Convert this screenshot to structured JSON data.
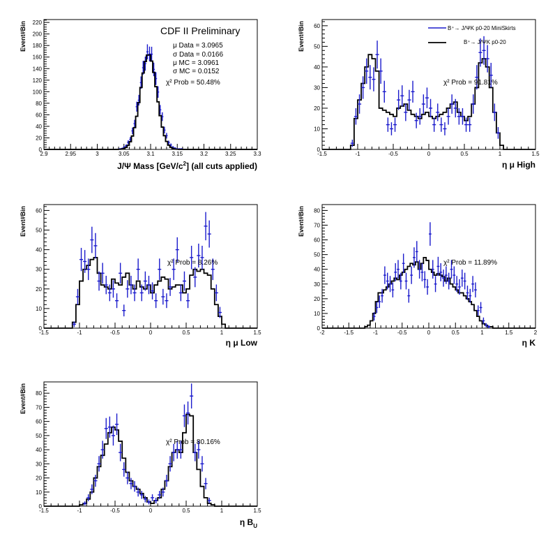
{
  "colors": {
    "data": "#1a1acc",
    "mc": "#000000"
  },
  "chart_data": [
    {
      "type": "histogram",
      "panel": "jpsi-mass",
      "title": "CDF II Preliminary",
      "xlabel_main": "J/Ψ Mass [GeV/c",
      "xlabel_sup": "2",
      "xlabel_tail": "] (all cuts applied)",
      "ylabel": "Event#Bin",
      "xlim": [
        2.9,
        3.3
      ],
      "ylim": [
        0,
        225
      ],
      "xticks": [
        2.9,
        2.95,
        3.0,
        3.05,
        3.1,
        3.15,
        3.2,
        3.25,
        3.3
      ],
      "xtick_labels": [
        "2.9",
        "2.95",
        "3",
        "3.05",
        "3.1",
        "3.15",
        "3.2",
        "3.25",
        "3.3"
      ],
      "yticks": [
        0,
        20,
        40,
        60,
        80,
        100,
        120,
        140,
        160,
        180,
        200,
        220
      ],
      "bin_width": 0.004,
      "annotations": [
        "μ Data = 3.0965",
        "σ Data =  0.0166",
        "μ MC = 3.0961",
        "σ MC =  0.0152",
        "χ² Prob = 50.48%"
      ],
      "gaussian_data": {
        "mu": 3.0965,
        "sigma": 0.0166,
        "amp": 168
      },
      "gaussian_mc": {
        "mu": 3.0961,
        "sigma": 0.0152,
        "amp": 165
      }
    },
    {
      "type": "histogram",
      "panel": "eta-mu-high",
      "xlabel_main": "η μ High",
      "ylabel": "Event#Bin",
      "xlim": [
        -1.5,
        1.5
      ],
      "ylim": [
        0,
        63
      ],
      "xticks": [
        -1.5,
        -1,
        -0.5,
        0,
        0.5,
        1,
        1.5
      ],
      "xtick_labels": [
        "-1.5",
        "-1",
        "-0.5",
        "0",
        "0.5",
        "1",
        "1.5"
      ],
      "yticks": [
        0,
        10,
        20,
        30,
        40,
        50,
        60
      ],
      "bin_width": 0.05,
      "annotation": "χ² Prob = 91.81%",
      "legend": [
        {
          "label": "B⁺→ J/ΨK p0-20 MiniSkirts",
          "style": "data"
        },
        {
          "label": "B⁺→ J/ΨK p0-20",
          "style": "mc"
        }
      ],
      "mc_centers": [
        -1.075,
        -1.025,
        -0.975,
        -0.925,
        -0.875,
        -0.825,
        -0.775,
        -0.725,
        -0.675,
        -0.625,
        -0.575,
        -0.525,
        -0.475,
        -0.425,
        -0.375,
        -0.325,
        -0.275,
        -0.225,
        -0.175,
        -0.125,
        -0.075,
        -0.025,
        0.025,
        0.075,
        0.125,
        0.175,
        0.225,
        0.275,
        0.325,
        0.375,
        0.425,
        0.475,
        0.525,
        0.575,
        0.625,
        0.675,
        0.725,
        0.775,
        0.825,
        0.875,
        0.925,
        0.975,
        1.025
      ],
      "mc_values": [
        2,
        15,
        24,
        32,
        40,
        46,
        44,
        38,
        20,
        19,
        18,
        17,
        16,
        20,
        21,
        22,
        19,
        17,
        16,
        15,
        17,
        18,
        16,
        15,
        16,
        17,
        18,
        20,
        22,
        23,
        18,
        16,
        14,
        16,
        22,
        30,
        42,
        44,
        40,
        30,
        18,
        8,
        2
      ],
      "data_x": [
        -1.075,
        -1.025,
        -0.975,
        -0.925,
        -0.875,
        -0.825,
        -0.775,
        -0.725,
        -0.675,
        -0.625,
        -0.575,
        -0.525,
        -0.475,
        -0.425,
        -0.375,
        -0.325,
        -0.275,
        -0.225,
        -0.175,
        -0.125,
        -0.075,
        -0.025,
        0.025,
        0.075,
        0.125,
        0.175,
        0.225,
        0.275,
        0.325,
        0.375,
        0.425,
        0.475,
        0.525,
        0.575,
        0.625,
        0.675,
        0.725,
        0.775,
        0.825,
        0.875,
        0.925,
        0.975
      ],
      "data_y": [
        3,
        16,
        22,
        30,
        38,
        35,
        34,
        46,
        38,
        28,
        12,
        10,
        12,
        24,
        26,
        18,
        24,
        28,
        14,
        16,
        22,
        25,
        20,
        12,
        18,
        12,
        10,
        16,
        22,
        20,
        16,
        16,
        12,
        12,
        22,
        35,
        47,
        48,
        44,
        36,
        18,
        8
      ]
    },
    {
      "type": "histogram",
      "panel": "eta-mu-low",
      "xlabel_main": "η μ Low",
      "ylabel": "Event#Bin",
      "xlim": [
        -1.5,
        1.5
      ],
      "ylim": [
        0,
        63
      ],
      "xticks": [
        -1.5,
        -1,
        -0.5,
        0,
        0.5,
        1,
        1.5
      ],
      "xtick_labels": [
        "-1.5",
        "-1",
        "-0.5",
        "0",
        "0.5",
        "1",
        "1.5"
      ],
      "yticks": [
        0,
        10,
        20,
        30,
        40,
        50,
        60
      ],
      "bin_width": 0.05,
      "annotation": "χ² Prob = 8.26%",
      "mc_centers": [
        -1.075,
        -1.025,
        -0.975,
        -0.925,
        -0.875,
        -0.825,
        -0.775,
        -0.725,
        -0.675,
        -0.625,
        -0.575,
        -0.525,
        -0.475,
        -0.425,
        -0.375,
        -0.325,
        -0.275,
        -0.225,
        -0.175,
        -0.125,
        -0.075,
        -0.025,
        0.025,
        0.075,
        0.125,
        0.175,
        0.225,
        0.275,
        0.325,
        0.375,
        0.425,
        0.475,
        0.525,
        0.575,
        0.625,
        0.675,
        0.725,
        0.775,
        0.825,
        0.875,
        0.925,
        0.975,
        1.025
      ],
      "mc_values": [
        3,
        12,
        24,
        30,
        32,
        35,
        36,
        28,
        22,
        21,
        20,
        25,
        23,
        22,
        26,
        28,
        22,
        20,
        24,
        21,
        20,
        22,
        18,
        22,
        24,
        26,
        25,
        20,
        21,
        22,
        22,
        18,
        20,
        27,
        30,
        29,
        30,
        28,
        27,
        20,
        12,
        6,
        2
      ],
      "data_x": [
        -1.075,
        -1.025,
        -0.975,
        -0.925,
        -0.875,
        -0.825,
        -0.775,
        -0.725,
        -0.675,
        -0.625,
        -0.575,
        -0.525,
        -0.475,
        -0.425,
        -0.375,
        -0.325,
        -0.275,
        -0.225,
        -0.175,
        -0.125,
        -0.075,
        -0.025,
        0.025,
        0.075,
        0.125,
        0.175,
        0.225,
        0.275,
        0.325,
        0.375,
        0.425,
        0.475,
        0.525,
        0.575,
        0.625,
        0.675,
        0.725,
        0.775,
        0.825,
        0.875,
        0.925,
        0.975
      ],
      "data_y": [
        2,
        16,
        35,
        34,
        30,
        45,
        42,
        24,
        28,
        22,
        18,
        20,
        14,
        28,
        9,
        20,
        22,
        18,
        30,
        18,
        24,
        22,
        19,
        14,
        30,
        16,
        14,
        21,
        30,
        40,
        18,
        24,
        14,
        36,
        26,
        37,
        36,
        52,
        48,
        30,
        18,
        8
      ]
    },
    {
      "type": "histogram",
      "panel": "eta-k",
      "xlabel_main": "η K",
      "ylabel": "Event#Bin",
      "xlim": [
        -2,
        2
      ],
      "ylim": [
        0,
        84
      ],
      "xticks": [
        -2,
        -1.5,
        -1,
        -0.5,
        0,
        0.5,
        1,
        1.5,
        2
      ],
      "xtick_labels": [
        "-2",
        "-1.5",
        "-1",
        "-0.5",
        "0",
        "0.5",
        "1",
        "1.5",
        "2"
      ],
      "yticks": [
        0,
        10,
        20,
        30,
        40,
        50,
        60,
        70,
        80
      ],
      "bin_width": 0.05,
      "annotation": "χ² Prob = 11.89%",
      "mc_centers": [
        -1.175,
        -1.125,
        -1.075,
        -1.025,
        -0.975,
        -0.925,
        -0.875,
        -0.825,
        -0.775,
        -0.725,
        -0.675,
        -0.625,
        -0.575,
        -0.525,
        -0.475,
        -0.425,
        -0.375,
        -0.325,
        -0.275,
        -0.225,
        -0.175,
        -0.125,
        -0.075,
        -0.025,
        0.025,
        0.075,
        0.125,
        0.175,
        0.225,
        0.275,
        0.325,
        0.375,
        0.425,
        0.475,
        0.525,
        0.575,
        0.625,
        0.675,
        0.725,
        0.775,
        0.825,
        0.875,
        0.925,
        0.975,
        1.025,
        1.075,
        1.125,
        1.175
      ],
      "mc_values": [
        1,
        2,
        5,
        10,
        18,
        24,
        24,
        26,
        28,
        30,
        32,
        34,
        33,
        36,
        38,
        40,
        42,
        44,
        43,
        45,
        40,
        44,
        48,
        46,
        40,
        38,
        36,
        37,
        36,
        35,
        32,
        34,
        30,
        28,
        26,
        24,
        24,
        22,
        20,
        18,
        16,
        12,
        8,
        5,
        3,
        2,
        1,
        1
      ],
      "data_x": [
        -1.025,
        -0.975,
        -0.925,
        -0.875,
        -0.825,
        -0.775,
        -0.725,
        -0.675,
        -0.625,
        -0.575,
        -0.525,
        -0.475,
        -0.425,
        -0.375,
        -0.325,
        -0.275,
        -0.225,
        -0.175,
        -0.125,
        -0.075,
        -0.025,
        0.025,
        0.075,
        0.125,
        0.175,
        0.225,
        0.275,
        0.325,
        0.375,
        0.425,
        0.475,
        0.525,
        0.575,
        0.625,
        0.675,
        0.725,
        0.775,
        0.825,
        0.875,
        0.925,
        0.975,
        1.025,
        1.075,
        1.125
      ],
      "data_y": [
        8,
        14,
        18,
        22,
        36,
        32,
        30,
        26,
        38,
        40,
        32,
        44,
        32,
        22,
        36,
        48,
        52,
        40,
        38,
        33,
        28,
        64,
        40,
        30,
        42,
        38,
        34,
        36,
        32,
        40,
        36,
        30,
        28,
        34,
        32,
        24,
        22,
        30,
        26,
        12,
        14,
        5,
        2,
        1
      ]
    },
    {
      "type": "histogram",
      "panel": "eta-bu",
      "xlabel_main": "η B",
      "xlabel_sub": "U",
      "ylabel": "Event#Bin",
      "xlim": [
        -1.5,
        1.5
      ],
      "ylim": [
        0,
        88
      ],
      "xticks": [
        -1.5,
        -1,
        -0.5,
        0,
        0.5,
        1,
        1.5
      ],
      "xtick_labels": [
        "-1.5",
        "-1",
        "-0.5",
        "0",
        "0.5",
        "1",
        "1.5"
      ],
      "yticks": [
        0,
        10,
        20,
        30,
        40,
        50,
        60,
        70,
        80
      ],
      "bin_width": 0.05,
      "annotation": "χ² Prob = 80.16%",
      "mc_centers": [
        -0.975,
        -0.925,
        -0.875,
        -0.825,
        -0.775,
        -0.725,
        -0.675,
        -0.625,
        -0.575,
        -0.525,
        -0.475,
        -0.425,
        -0.375,
        -0.325,
        -0.275,
        -0.225,
        -0.175,
        -0.125,
        -0.075,
        -0.025,
        0.025,
        0.075,
        0.125,
        0.175,
        0.225,
        0.275,
        0.325,
        0.375,
        0.425,
        0.475,
        0.525,
        0.575,
        0.625,
        0.675,
        0.725,
        0.775,
        0.825,
        0.875
      ],
      "mc_values": [
        1,
        2,
        5,
        10,
        20,
        28,
        36,
        44,
        52,
        56,
        54,
        46,
        34,
        24,
        18,
        14,
        12,
        9,
        6,
        3,
        2,
        4,
        6,
        12,
        18,
        28,
        38,
        40,
        38,
        52,
        65,
        64,
        38,
        26,
        14,
        6,
        2,
        1
      ],
      "data_x": [
        -0.925,
        -0.875,
        -0.825,
        -0.775,
        -0.725,
        -0.675,
        -0.625,
        -0.575,
        -0.525,
        -0.475,
        -0.425,
        -0.375,
        -0.325,
        -0.275,
        -0.225,
        -0.175,
        -0.125,
        -0.075,
        -0.025,
        0.025,
        0.075,
        0.125,
        0.175,
        0.225,
        0.275,
        0.325,
        0.375,
        0.425,
        0.475,
        0.525,
        0.575,
        0.625,
        0.675,
        0.725,
        0.775,
        0.825
      ],
      "data_y": [
        2,
        6,
        12,
        18,
        30,
        40,
        55,
        56,
        50,
        58,
        38,
        26,
        20,
        16,
        14,
        10,
        8,
        5,
        3,
        6,
        4,
        8,
        10,
        18,
        30,
        38,
        40,
        40,
        64,
        66,
        78,
        38,
        40,
        30,
        16,
        4
      ]
    }
  ]
}
